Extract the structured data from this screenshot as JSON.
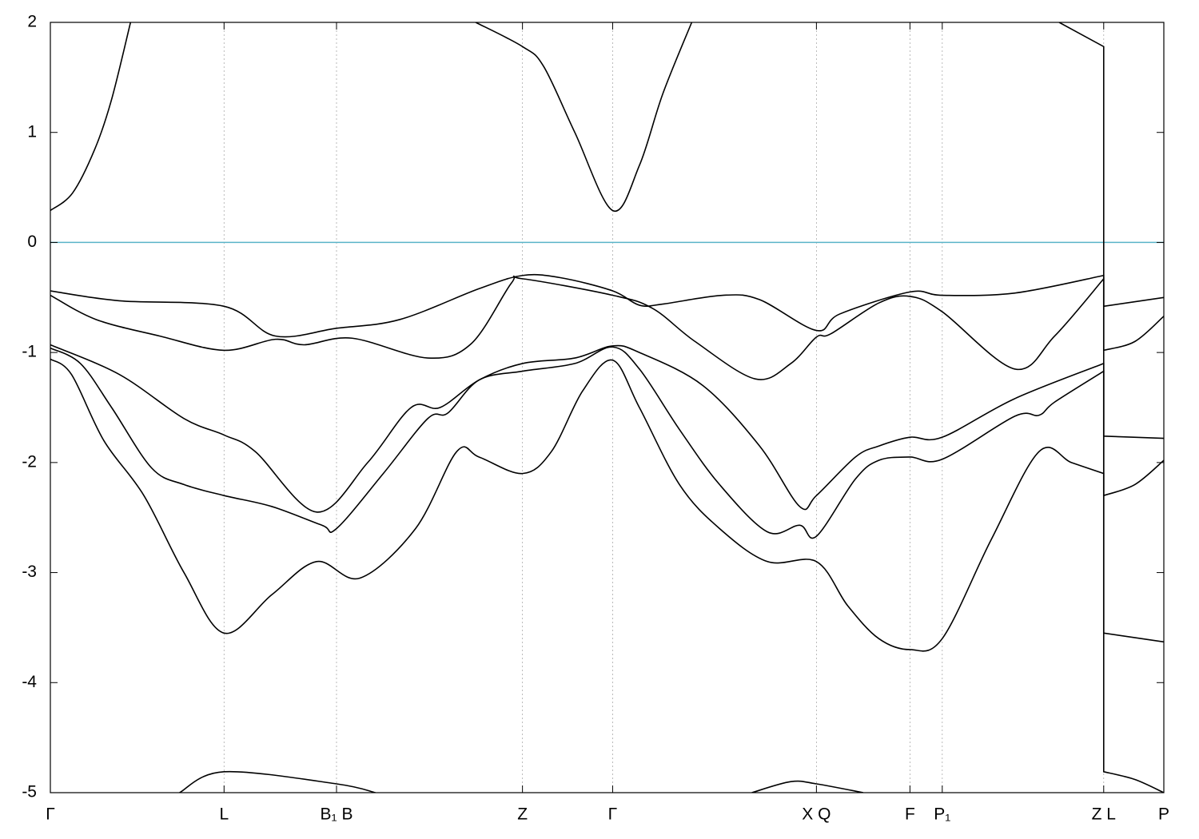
{
  "chart_data": {
    "type": "line",
    "xlim": [
      0,
      1
    ],
    "ylim": [
      -5,
      2
    ],
    "yticks": [
      -5,
      -4,
      -3,
      -2,
      -1,
      0,
      1,
      2
    ],
    "xticks": [
      {
        "value": 0,
        "label": "Γ"
      },
      {
        "value": 0.156,
        "label": "L"
      },
      {
        "value": 0.257,
        "label": "B₁ B"
      },
      {
        "value": 0.424,
        "label": "Z"
      },
      {
        "value": 0.505,
        "label": "Γ"
      },
      {
        "value": 0.688,
        "label": "X Q"
      },
      {
        "value": 0.772,
        "label": "F"
      },
      {
        "value": 0.801,
        "label": "P₁"
      },
      {
        "value": 0.946,
        "label": "Z L"
      },
      {
        "value": 1,
        "label": "P"
      }
    ],
    "grid": true,
    "hline": {
      "y": 0,
      "color": "#5ab4c8"
    },
    "series": [
      {
        "color": "#000000",
        "x": [
          0,
          0.02,
          0.04,
          0.055,
          0.072
        ],
        "values": [
          0.29,
          0.45,
          0.85,
          1.3,
          2.0
        ]
      },
      {
        "color": "#000000",
        "x": [
          0.382,
          0.424,
          0.443,
          0.471,
          0.505,
          0.529,
          0.55,
          0.576
        ],
        "values": [
          2.0,
          1.78,
          1.6,
          1.0,
          0.29,
          0.7,
          1.35,
          2.0
        ]
      },
      {
        "color": "#000000",
        "x": [
          0.906,
          0.946,
          0.946,
          0.974,
          1
        ],
        "values": [
          2.0,
          1.78,
          -4.81,
          -4.88,
          -5.0
        ]
      },
      {
        "color": "#000000",
        "x": [
          0.116,
          0.156,
          0.257,
          0.292
        ],
        "values": [
          -5.0,
          -4.81,
          -4.92,
          -5.0
        ]
      },
      {
        "color": "#000000",
        "x": [
          0.63,
          0.665,
          0.688,
          0.73
        ],
        "values": [
          -5.0,
          -4.9,
          -4.92,
          -5.0
        ]
      },
      {
        "color": "#000000",
        "x": [
          0,
          0.062,
          0.156,
          0.202,
          0.257,
          0.314,
          0.385,
          0.424,
          0.458,
          0.505,
          0.529,
          0.55,
          0.604,
          0.637,
          0.688,
          0.709,
          0.772,
          0.801,
          0.866,
          0.946,
          0.946,
          1
        ],
        "values": [
          -0.44,
          -0.53,
          -0.58,
          -0.85,
          -0.78,
          -0.7,
          -0.42,
          -0.3,
          -0.32,
          -0.44,
          -0.57,
          -0.56,
          -0.48,
          -0.52,
          -0.8,
          -0.65,
          -0.45,
          -0.48,
          -0.46,
          -0.3,
          -0.58,
          -0.5
        ]
      },
      {
        "color": "#000000",
        "x": [
          0,
          0.041,
          0.098,
          0.156,
          0.202,
          0.228,
          0.271,
          0.339,
          0.378,
          0.414,
          0.424,
          0.505,
          0.541,
          0.579,
          0.633,
          0.665,
          0.688,
          0.701,
          0.744,
          0.772,
          0.801,
          0.866,
          0.902,
          0.946,
          0.946,
          0.974,
          1
        ],
        "values": [
          -0.48,
          -0.7,
          -0.85,
          -0.98,
          -0.88,
          -0.93,
          -0.87,
          -1.05,
          -0.92,
          -0.37,
          -0.33,
          -0.48,
          -0.6,
          -0.9,
          -1.24,
          -1.1,
          -0.86,
          -0.83,
          -0.55,
          -0.49,
          -0.63,
          -1.15,
          -0.85,
          -0.33,
          -0.98,
          -0.9,
          -0.67
        ]
      },
      {
        "color": "#000000",
        "x": [
          0,
          0.062,
          0.12,
          0.156,
          0.184,
          0.239,
          0.285,
          0.324,
          0.35,
          0.385,
          0.424,
          0.471,
          0.505,
          0.529,
          0.586,
          0.637,
          0.673,
          0.688,
          0.723,
          0.744,
          0.772,
          0.801,
          0.866,
          0.946,
          0.946,
          1
        ],
        "values": [
          -0.93,
          -1.2,
          -1.6,
          -1.75,
          -1.9,
          -2.45,
          -2.0,
          -1.5,
          -1.5,
          -1.25,
          -1.1,
          -1.05,
          -0.94,
          -1.0,
          -1.3,
          -1.85,
          -2.4,
          -2.3,
          -1.95,
          -1.85,
          -1.77,
          -1.77,
          -1.42,
          -1.1,
          -1.76,
          -1.78
        ]
      },
      {
        "color": "#000000",
        "x": [
          0,
          0.027,
          0.055,
          0.091,
          0.12,
          0.156,
          0.199,
          0.244,
          0.257,
          0.299,
          0.339,
          0.357,
          0.385,
          0.424,
          0.471,
          0.505,
          0.529,
          0.565,
          0.601,
          0.644,
          0.673,
          0.688,
          0.723,
          0.744,
          0.772,
          0.801,
          0.866,
          0.888,
          0.902,
          0.946,
          0.946,
          0.974,
          1
        ],
        "values": [
          -0.96,
          -1.1,
          -1.5,
          -2.05,
          -2.2,
          -2.3,
          -2.4,
          -2.57,
          -2.6,
          -2.1,
          -1.6,
          -1.55,
          -1.25,
          -1.17,
          -1.1,
          -0.95,
          -1.15,
          -1.7,
          -2.2,
          -2.63,
          -2.57,
          -2.67,
          -2.15,
          -1.98,
          -1.95,
          -1.97,
          -1.58,
          -1.57,
          -1.45,
          -1.17,
          -2.3,
          -2.2,
          -1.98
        ]
      },
      {
        "color": "#000000",
        "x": [
          0,
          0.019,
          0.048,
          0.084,
          0.12,
          0.156,
          0.199,
          0.239,
          0.278,
          0.328,
          0.365,
          0.385,
          0.424,
          0.45,
          0.478,
          0.505,
          0.529,
          0.565,
          0.601,
          0.644,
          0.688,
          0.716,
          0.744,
          0.772,
          0.801,
          0.845,
          0.888,
          0.917,
          0.946,
          0.946,
          1
        ],
        "values": [
          -1.06,
          -1.2,
          -1.8,
          -2.3,
          -3.0,
          -3.55,
          -3.2,
          -2.9,
          -3.05,
          -2.6,
          -1.9,
          -1.95,
          -2.1,
          -1.9,
          -1.35,
          -1.07,
          -1.5,
          -2.2,
          -2.6,
          -2.9,
          -2.9,
          -3.3,
          -3.6,
          -3.7,
          -3.6,
          -2.7,
          -1.9,
          -2.0,
          -2.1,
          -3.55,
          -3.63
        ]
      }
    ]
  }
}
